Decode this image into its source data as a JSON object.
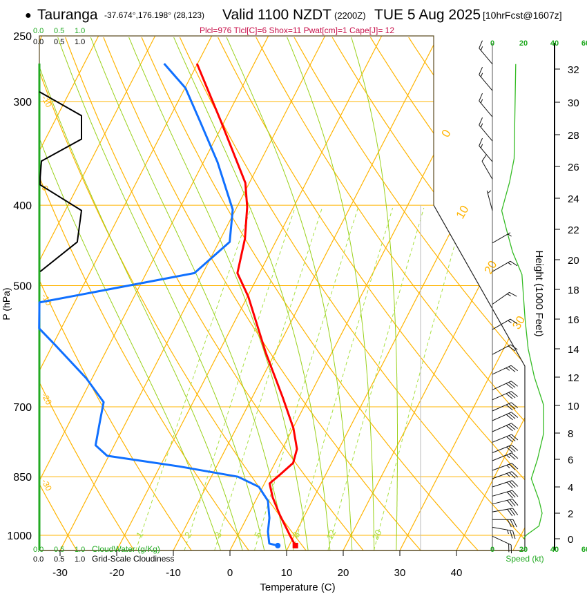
{
  "header": {
    "bullet": "●",
    "station": "Tauranga",
    "coords": "-37.674°,176.198° (28,123)",
    "valid": "Valid 1100 NZDT",
    "utc": "(2200Z)",
    "date": "TUE 5 Aug 2025",
    "forecast": "[10hrFcst@1607z]"
  },
  "indices": "Plcl=976 Tlcl[C]=6 Shox=11 Pwat[cm]=1 Cape[J]= 12",
  "colors": {
    "temperature": "#ff0000",
    "dewpoint": "#1070ff",
    "isotherm": "#ffb400",
    "moist_adiabat": "#99d11a",
    "mixing_ratio": "#a8e040",
    "cloudwater": "#22aa22",
    "indices": "#c8104a"
  },
  "chart_data": {
    "type": "line",
    "title": "Tauranga Skew-T",
    "xlabel": "Temperature (C)",
    "ylabel": "P (hPa)",
    "y2label": "Height (1000 Feet)",
    "speed_label": "Speed (kt)",
    "x_ticks": [
      "-30",
      "-20",
      "-10",
      "0",
      "10",
      "20",
      "30",
      "40"
    ],
    "x_tick_values": [
      -30,
      -20,
      -10,
      0,
      10,
      20,
      30,
      40
    ],
    "y_ticks": [
      "250",
      "300",
      "400",
      "500",
      "700",
      "850",
      "1000"
    ],
    "y_tick_values": [
      250,
      300,
      400,
      500,
      700,
      850,
      1000
    ],
    "height_ticks": [
      "0",
      "2",
      "4",
      "6",
      "8",
      "10",
      "12",
      "14",
      "16",
      "18",
      "20",
      "22",
      "24",
      "26",
      "28",
      "30",
      "32"
    ],
    "speed_ticks": [
      "0",
      "20",
      "40",
      "60"
    ],
    "cloudwater_scale": [
      "0.0",
      "0.5",
      "1.0"
    ],
    "cloudwater_label": "CloudWater (g/Kg)",
    "cloudiness_scale": [
      "0.0",
      "0.5",
      "1.0"
    ],
    "cloudiness_label": "Grid-Scale Cloudiness",
    "ylim_hPa": [
      1043,
      250
    ],
    "isotherm_labels": [
      "0",
      "10",
      "20",
      "30"
    ],
    "isotherm_label_values": [
      0,
      10,
      20,
      30
    ],
    "theta_labels": [
      "-10",
      "0",
      "-10",
      "-20",
      "-30"
    ],
    "theta_label_pressures": [
      300,
      385,
      520,
      685,
      870
    ],
    "mixing_ratio_labels": [
      "1",
      "2",
      "3",
      "5",
      "8",
      "12",
      "20"
    ],
    "mixing_ratio_values": [
      1,
      2,
      3,
      5,
      8,
      12,
      20
    ],
    "moist_adiabat_start_C": [
      -4,
      0,
      4,
      8,
      12,
      16,
      20,
      24,
      28
    ],
    "series": [
      {
        "name": "Temperature",
        "p": [
          270,
          317,
          376,
          402,
          439,
          483,
          516,
          602,
          682,
          743,
          787,
          818,
          846,
          866,
          900,
          944,
          1000,
          1029
        ],
        "T": [
          -50.1,
          -40.6,
          -30.7,
          -28.2,
          -25.7,
          -23.9,
          -19.8,
          -11.7,
          -4.6,
          0.1,
          2.6,
          3.2,
          1.9,
          0.9,
          2.7,
          5.5,
          9.2,
          11.1
        ]
      },
      {
        "name": "Dewpoint",
        "p": [
          270,
          289,
          317,
          355,
          405,
          443,
          483,
          524,
          563,
          590,
          647,
          691,
          729,
          779,
          802,
          826,
          850,
          874,
          909,
          953,
          990,
          1023,
          1029
        ],
        "T": [
          -55.9,
          -49.9,
          -44.3,
          -37.5,
          -30.5,
          -28.1,
          -31.5,
          -56.2,
          -53.9,
          -49.5,
          -41.0,
          -35.8,
          -34.7,
          -33.3,
          -30.3,
          -16.6,
          -5.3,
          -0.7,
          2.2,
          4.0,
          5.0,
          6.3,
          8.0
        ]
      }
    ],
    "cloudiness": {
      "p": [
        292,
        312,
        333,
        354,
        370,
        378,
        406,
        443,
        481
      ],
      "fraction": [
        0,
        1,
        1,
        0.05,
        0.02,
        0.02,
        1,
        0.9,
        0.02
      ]
    },
    "wind_speed_profile": {
      "height_kft": [
        32.3,
        26.5,
        25,
        23.2,
        22,
        20.5,
        19,
        16,
        14,
        12,
        10,
        8,
        6,
        4.6,
        3,
        2,
        1,
        0.3,
        0
      ],
      "speed_kt": [
        15,
        14,
        11,
        6,
        9,
        13,
        19,
        21,
        23,
        27,
        33,
        33,
        29,
        25,
        30,
        32,
        30,
        22,
        20
      ]
    },
    "wind_barbs": [
      {
        "h": 32.3,
        "dir": 320,
        "kt": 15
      },
      {
        "h": 30.7,
        "dir": 320,
        "kt": 15
      },
      {
        "h": 29.1,
        "dir": 320,
        "kt": 15
      },
      {
        "h": 27.6,
        "dir": 320,
        "kt": 15
      },
      {
        "h": 26.3,
        "dir": 320,
        "kt": 15
      },
      {
        "h": 25.2,
        "dir": 330,
        "kt": 10
      },
      {
        "h": 23.2,
        "dir": 345,
        "kt": 5
      },
      {
        "h": 21.1,
        "dir": 60,
        "kt": 5
      },
      {
        "h": 19.2,
        "dir": 60,
        "kt": 15
      },
      {
        "h": 17.0,
        "dir": 55,
        "kt": 15
      },
      {
        "h": 15.3,
        "dir": 60,
        "kt": 15
      },
      {
        "h": 13.6,
        "dir": 62,
        "kt": 20
      },
      {
        "h": 12.2,
        "dir": 65,
        "kt": 25
      },
      {
        "h": 11.1,
        "dir": 65,
        "kt": 30
      },
      {
        "h": 10.4,
        "dir": 66,
        "kt": 30
      },
      {
        "h": 9.6,
        "dir": 66,
        "kt": 30
      },
      {
        "h": 8.9,
        "dir": 66,
        "kt": 30
      },
      {
        "h": 8.1,
        "dir": 66,
        "kt": 30
      },
      {
        "h": 7.3,
        "dir": 68,
        "kt": 30
      },
      {
        "h": 6.5,
        "dir": 68,
        "kt": 30
      },
      {
        "h": 5.9,
        "dir": 68,
        "kt": 25
      },
      {
        "h": 5.2,
        "dir": 70,
        "kt": 25
      },
      {
        "h": 4.6,
        "dir": 70,
        "kt": 25
      },
      {
        "h": 4.0,
        "dir": 72,
        "kt": 30
      },
      {
        "h": 3.3,
        "dir": 74,
        "kt": 30
      },
      {
        "h": 2.7,
        "dir": 76,
        "kt": 30
      },
      {
        "h": 2.1,
        "dir": 80,
        "kt": 30
      },
      {
        "h": 1.5,
        "dir": 90,
        "kt": 30
      },
      {
        "h": 0.9,
        "dir": 100,
        "kt": 25
      },
      {
        "h": 0.2,
        "dir": 115,
        "kt": 20
      }
    ]
  }
}
